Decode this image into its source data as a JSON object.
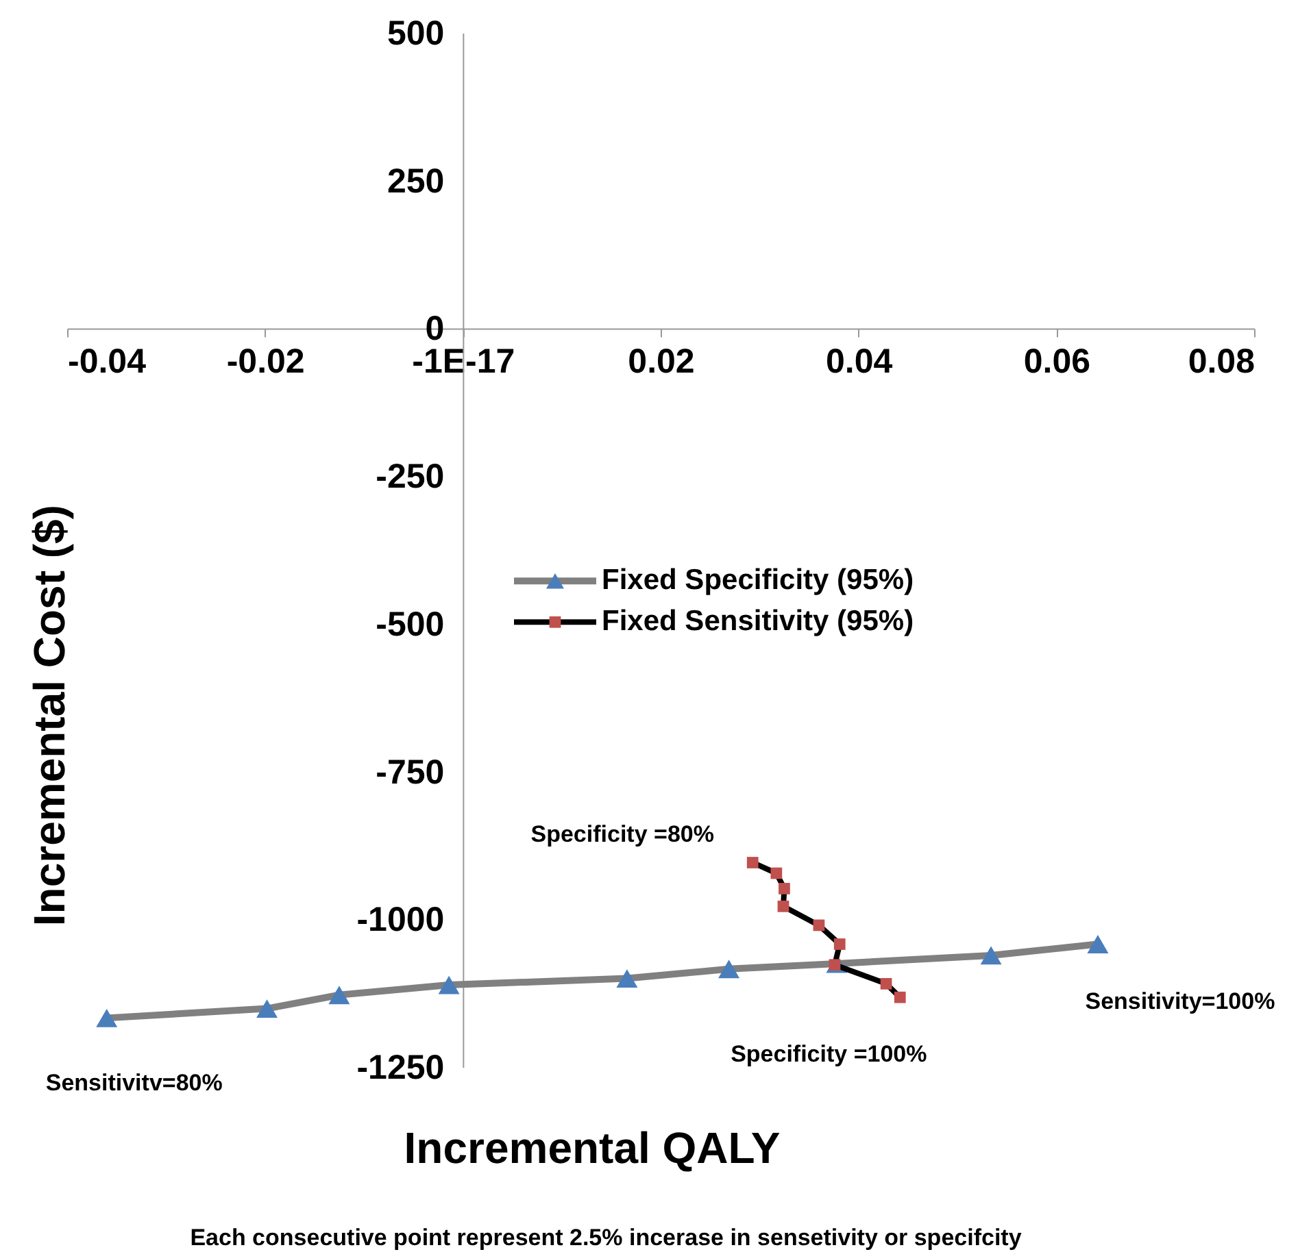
{
  "chart_data": {
    "type": "line",
    "xlabel": "Incremental QALY",
    "ylabel": "Incremental Cost ($)",
    "xlim": [
      -0.04,
      0.08
    ],
    "xticks": [
      -0.04,
      -0.02,
      {
        "value": 0,
        "label": "-1E-17"
      },
      0.02,
      0.04,
      0.06,
      0.08
    ],
    "ylim": [
      -1250,
      500
    ],
    "yticks": [
      500,
      250,
      0,
      -250,
      -500,
      -750,
      -1000,
      -1250
    ],
    "grid": false,
    "legend": "right",
    "line_style": "solid",
    "series": [
      {
        "name": "Fixed Specificity (95%)",
        "color": "#808080",
        "colors": [
          "#4a7ebb",
          "#4a7ebb",
          "#4a7ebb",
          "#4a7ebb",
          "#4a7ebb",
          "#4a7ebb",
          "#4a7ebb",
          "#4a7ebb",
          "#4a7ebb"
        ],
        "marker": "triangle",
        "x": [
          -0.036,
          -0.0198,
          -0.0125,
          -0.0014,
          0.0166,
          0.0269,
          0.0378,
          0.0534,
          0.0642
        ],
        "values": [
          -1167,
          -1151,
          -1128,
          -1111,
          -1100,
          -1084,
          -1075,
          -1061,
          -1042
        ]
      },
      {
        "name": "Fixed Sensitivity (95%)",
        "color": "#000000",
        "colors": [
          "#c0504d",
          "#c0504d",
          "#c0504d",
          "#c0504d",
          "#c0504d",
          "#c0504d",
          "#c0504d",
          "#c0504d",
          "#c0504d"
        ],
        "marker": "square",
        "x": [
          0.0293,
          0.0317,
          0.0325,
          0.0324,
          0.036,
          0.0381,
          0.0376,
          0.0428,
          0.0442
        ],
        "values": [
          -904,
          -922,
          -948,
          -978,
          -1010,
          -1042,
          -1077,
          -1109,
          -1132
        ]
      }
    ],
    "annotations": [
      {
        "text": "Sensitivitv=80%",
        "x": -0.036,
        "y": -1167
      },
      {
        "text": "Sensitivity=100%",
        "x": 0.0642,
        "y": -1042
      },
      {
        "text": "Specificity =80%",
        "x": 0.0293,
        "y": -904
      },
      {
        "text": "Specificity =100%",
        "x": 0.0442,
        "y": -1132
      },
      "Each consecutive point represent 2.5% incerase in sensetivity or specifcity"
    ]
  }
}
